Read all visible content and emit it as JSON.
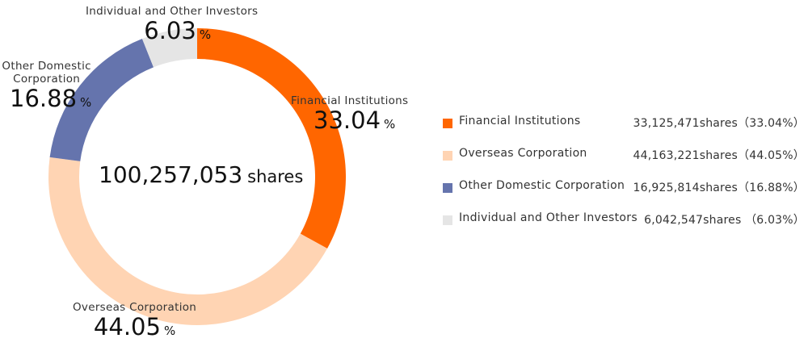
{
  "center": {
    "total": "100,257,053",
    "unit": "shares"
  },
  "chart_data": {
    "type": "pie",
    "categories": [
      "Financial Institutions",
      "Overseas Corporation",
      "Other Domestic Corporation",
      "Individual and Other Investors"
    ],
    "values": [
      33.04,
      44.05,
      16.88,
      6.03
    ],
    "colors": [
      "#ff6600",
      "#ffd4b3",
      "#6574ad",
      "#e5e5e5"
    ],
    "unit": "%"
  },
  "slice_labels": [
    {
      "name": "Financial Institutions",
      "pct": "33.04",
      "unit": "%"
    },
    {
      "name": "Overseas Corporation",
      "pct": "44.05",
      "unit": "%"
    },
    {
      "name_line1": "Other Domestic",
      "name_line2": "Corporation",
      "pct": "16.88",
      "unit": "%"
    },
    {
      "name": "Individual and Other Investors",
      "pct": "6.03",
      "unit": "%"
    }
  ],
  "legend": [
    {
      "name": "Financial Institutions",
      "value": "33,125,471shares（33.04%）",
      "color": "#ff6600"
    },
    {
      "name": "Overseas Corporation",
      "value": "44,163,221shares（44.05%）",
      "color": "#ffd4b3"
    },
    {
      "name": "Other Domestic Corporation",
      "value": "16,925,814shares（16.88%）",
      "color": "#6574ad"
    },
    {
      "name": "Individual and Other Investors",
      "value": "6,042,547shares （6.03%）",
      "color": "#e5e5e5"
    }
  ]
}
